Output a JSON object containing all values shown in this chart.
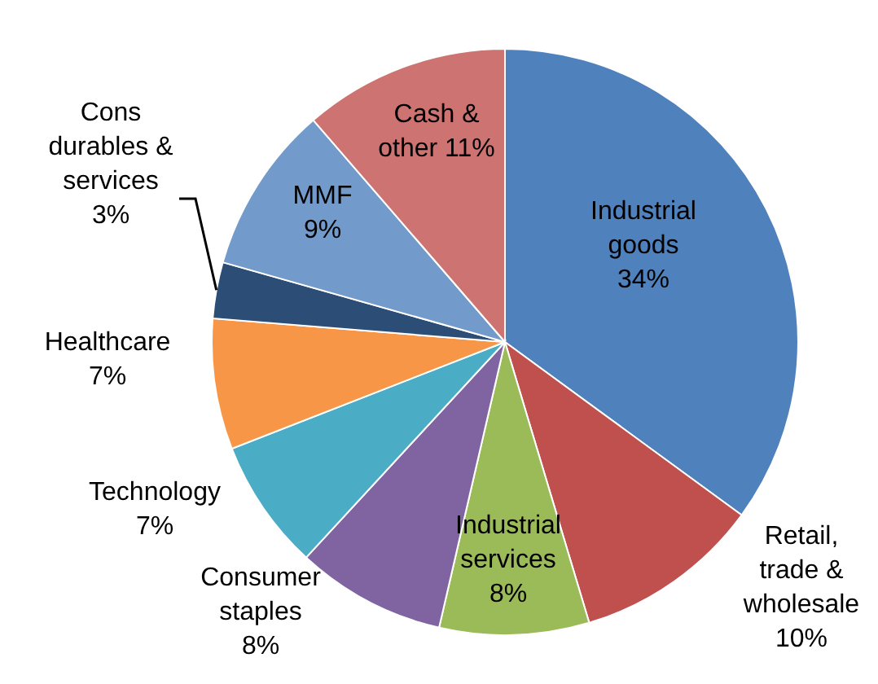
{
  "chart_data": {
    "type": "pie",
    "categories": [
      "Industrial goods",
      "Retail, trade & wholesale",
      "Industrial services",
      "Consumer staples",
      "Technology",
      "Healthcare",
      "Cons durables & services",
      "MMF",
      "Cash & other"
    ],
    "values": [
      34,
      10,
      8,
      8,
      7,
      7,
      3,
      9,
      11
    ],
    "value_labels": [
      "34%",
      "10%",
      "8%",
      "8%",
      "7%",
      "7%",
      "3%",
      "9%",
      "11%"
    ],
    "colors": [
      "#4f81bd",
      "#c0504d",
      "#9bbb59",
      "#8064a2",
      "#4bacc6",
      "#f79646",
      "#2c4d75",
      "#729aca",
      "#cd7371"
    ]
  }
}
